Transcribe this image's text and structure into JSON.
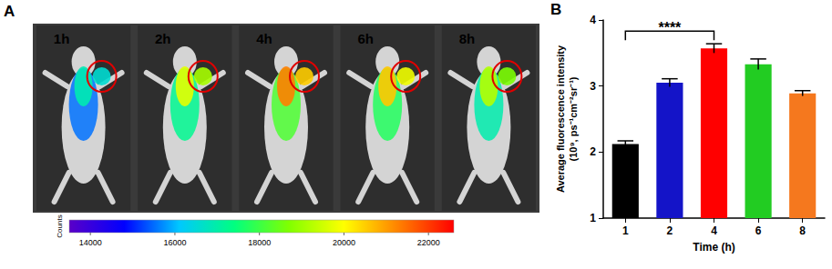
{
  "panel_a": {
    "label": "A",
    "images": [
      "1h",
      "2h",
      "4h",
      "6h",
      "8h"
    ],
    "colorbar": {
      "title": "Counts",
      "range": [
        13500,
        22600
      ],
      "ticks": [
        14000,
        16000,
        18000,
        20000,
        22000
      ]
    }
  },
  "panel_b": {
    "label": "B"
  },
  "chart_data": {
    "type": "bar",
    "categories": [
      "1",
      "2",
      "4",
      "6",
      "8"
    ],
    "values": [
      2.12,
      3.05,
      3.57,
      3.33,
      2.89
    ],
    "errors": [
      0.05,
      0.06,
      0.07,
      0.08,
      0.04
    ],
    "colors": [
      "#000000",
      "#1414c8",
      "#ff0000",
      "#22cc22",
      "#f5781e"
    ],
    "x_label": "Time (h)",
    "y_label": "Average fluorescence intensity\n(10⁹, ps⁻¹cm⁻²sr⁻¹)",
    "ylim": [
      1,
      4
    ],
    "yticks": [
      1,
      2,
      3,
      4
    ],
    "grid": false,
    "annotations": [
      {
        "text": "****",
        "between": [
          "1",
          "4"
        ]
      }
    ]
  }
}
